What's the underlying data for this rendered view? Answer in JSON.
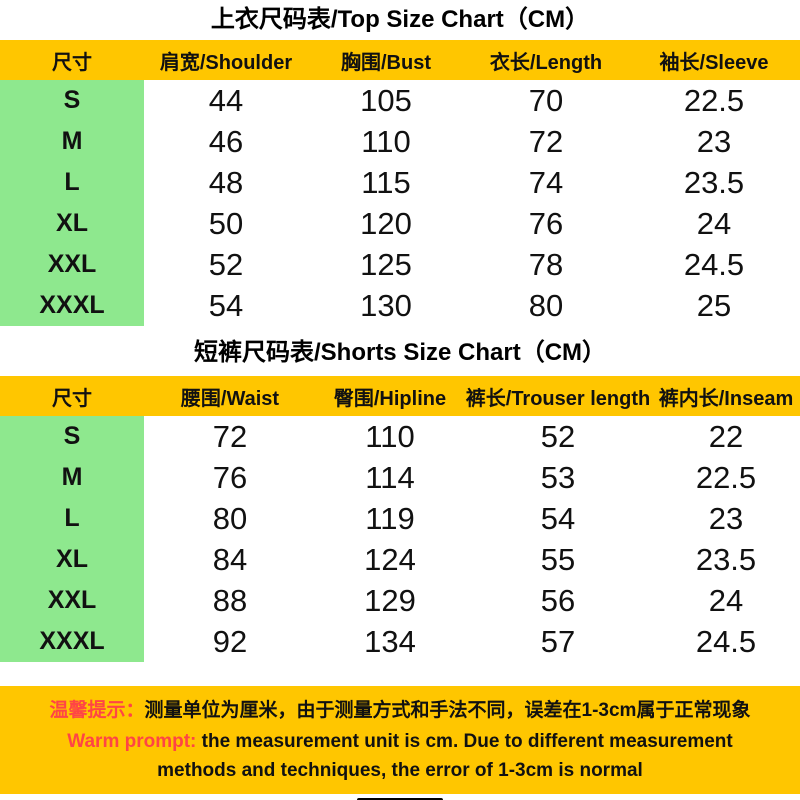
{
  "chart_data": [
    {
      "type": "table",
      "title": "上衣尺码表/Top Size Chart（CM）",
      "columns": [
        "尺寸",
        "肩宽/Shoulder",
        "胸围/Bust",
        "衣长/Length",
        "袖长/Sleeve"
      ],
      "rows": [
        [
          "S",
          "44",
          "105",
          "70",
          "22.5"
        ],
        [
          "M",
          "46",
          "110",
          "72",
          "23"
        ],
        [
          "L",
          "48",
          "115",
          "74",
          "23.5"
        ],
        [
          "XL",
          "50",
          "120",
          "76",
          "24"
        ],
        [
          "XXL",
          "52",
          "125",
          "78",
          "24.5"
        ],
        [
          "XXXL",
          "54",
          "130",
          "80",
          "25"
        ]
      ]
    },
    {
      "type": "table",
      "title": "短裤尺码表/Shorts Size Chart（CM）",
      "columns": [
        "尺寸",
        "腰围/Waist",
        "臀围/Hipline",
        "裤长/Trouser length",
        "裤内长/Inseam"
      ],
      "rows": [
        [
          "S",
          "72",
          "110",
          "52",
          "22"
        ],
        [
          "M",
          "76",
          "114",
          "53",
          "22.5"
        ],
        [
          "L",
          "80",
          "119",
          "54",
          "23"
        ],
        [
          "XL",
          "84",
          "124",
          "55",
          "23.5"
        ],
        [
          "XXL",
          "88",
          "129",
          "56",
          "24"
        ],
        [
          "XXXL",
          "92",
          "134",
          "57",
          "24.5"
        ]
      ]
    }
  ],
  "note": {
    "cn_prefix": "温馨提示：",
    "cn_text": "测量单位为厘米，由于测量方式和手法不同，误差在1-3cm属于正常现象",
    "en_prefix": "Warm prompt:",
    "en_text": " the measurement unit is cm. Due to different measurement methods and techniques, the error of 1-3cm is normal"
  },
  "colors": {
    "header_yellow": "#ffc600",
    "size_green": "#8ee88e",
    "note_red": "#ff4545",
    "text_black": "#141414"
  }
}
